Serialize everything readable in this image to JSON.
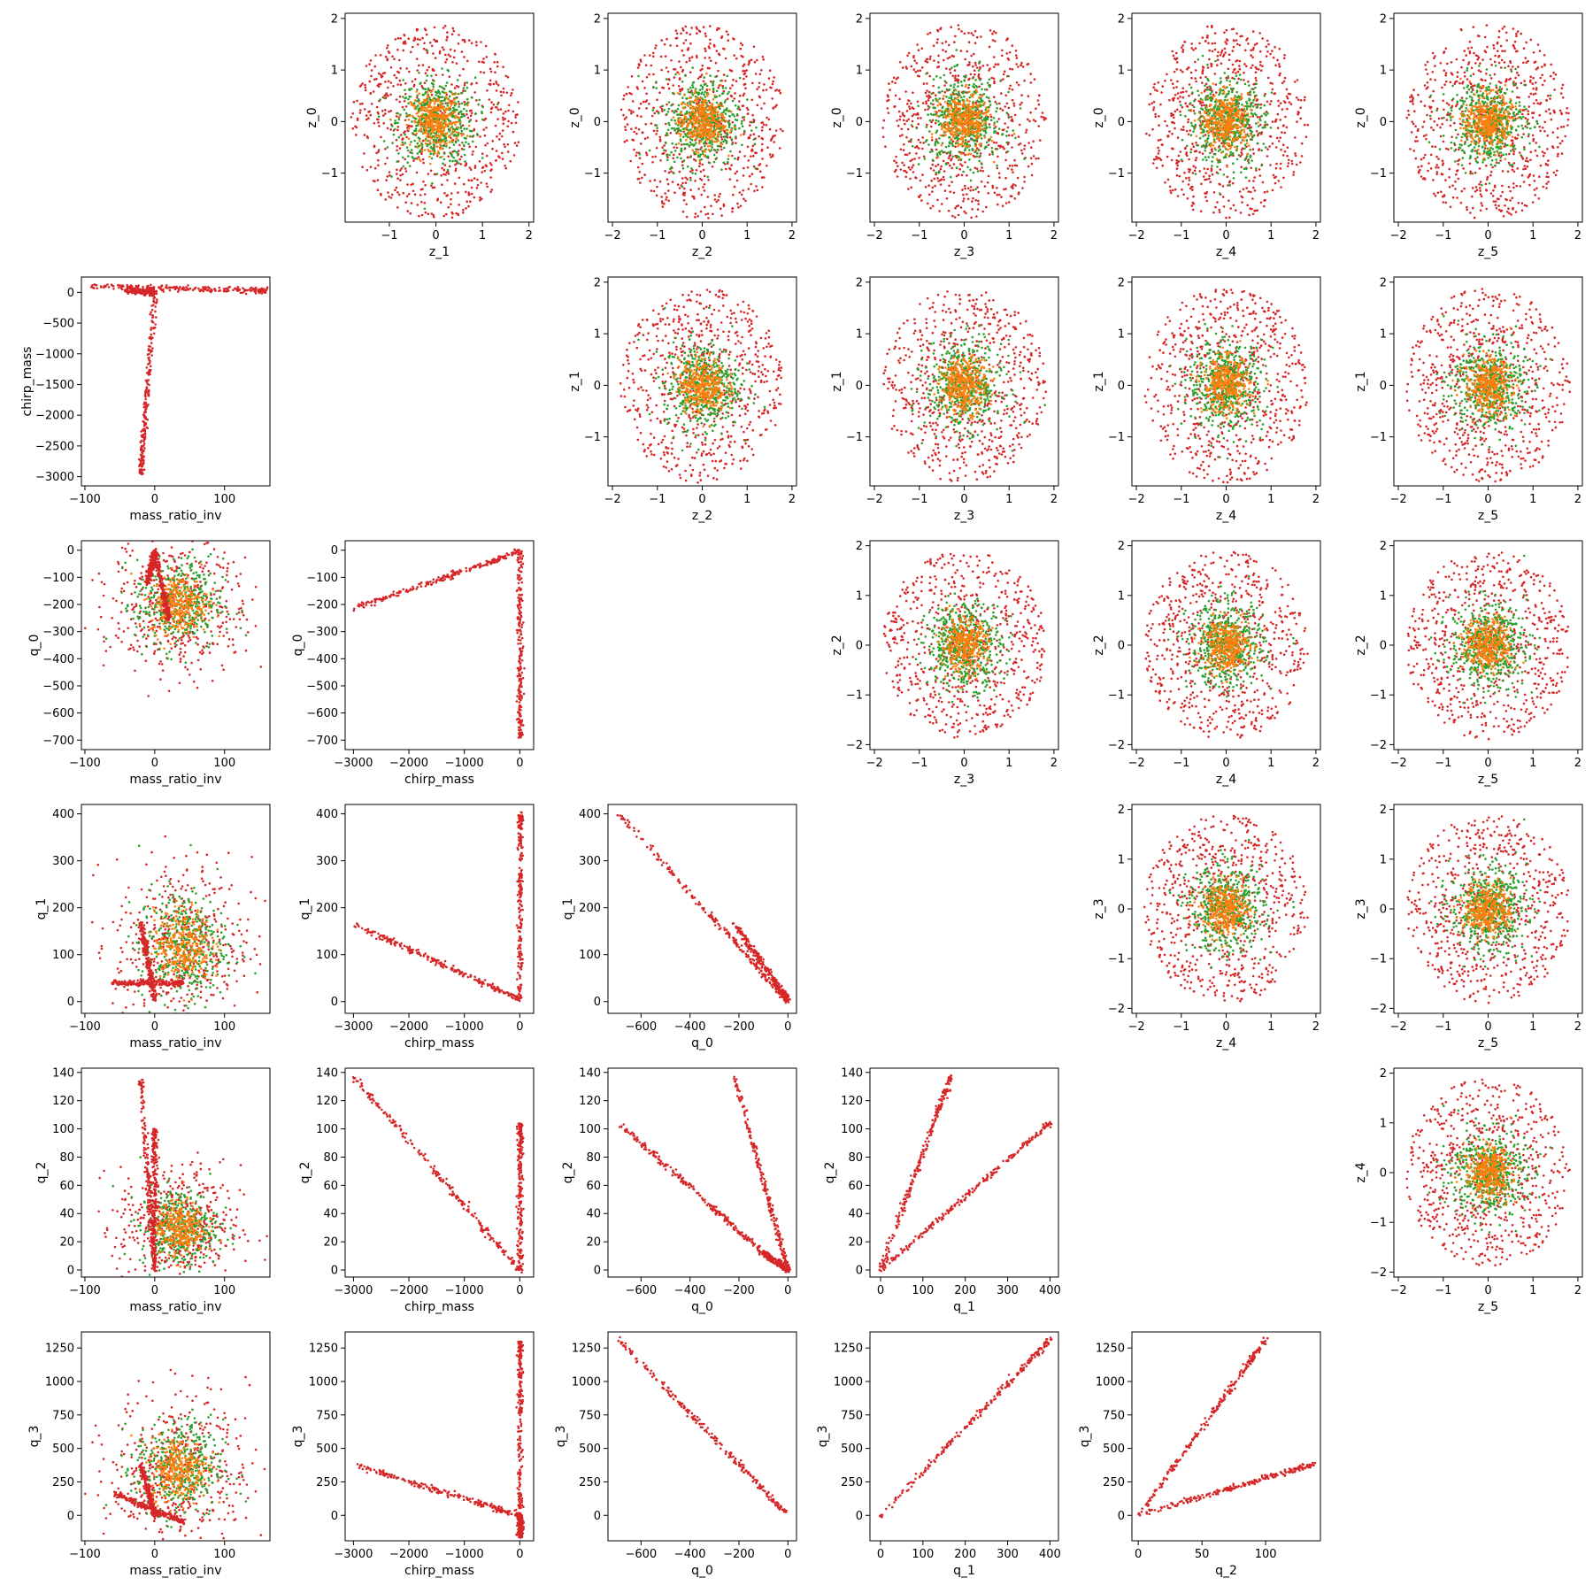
{
  "chart_data": {
    "type": "scatter",
    "layout": "pairwise-grid-6x6",
    "series_colors": [
      "#d62728",
      "#2ca02c",
      "#ff7f0e"
    ],
    "variables": {
      "z_0": {
        "ticks": [
          -1,
          0,
          1,
          2
        ],
        "range": [
          -1.95,
          2.1
        ]
      },
      "z_1": {
        "ticks": [
          -1,
          0,
          1,
          2
        ],
        "range": [
          -1.95,
          2.1
        ]
      },
      "z_2": {
        "ticks": [
          -2,
          -1,
          0,
          1,
          2
        ],
        "range": [
          -2.1,
          2.1
        ]
      },
      "z_3": {
        "ticks": [
          -2,
          -1,
          0,
          1,
          2
        ],
        "range": [
          -2.1,
          2.1
        ]
      },
      "z_4": {
        "ticks": [
          -2,
          -1,
          0,
          1,
          2
        ],
        "range": [
          -2.1,
          2.1
        ]
      },
      "z_5": {
        "ticks": [
          -2,
          -1,
          0,
          1,
          2
        ],
        "range": [
          -2.1,
          2.1
        ]
      },
      "mass_ratio_inv": {
        "ticks": [
          -100,
          0,
          100
        ],
        "range": [
          -105,
          165
        ]
      },
      "chirp_mass": {
        "ticks": [
          -3000,
          -2500,
          -2000,
          -1500,
          -1000,
          -500,
          0
        ],
        "range": [
          -3150,
          250
        ],
        "xticks": [
          -3000,
          -2000,
          -1000,
          0
        ]
      },
      "q_0": {
        "ticks": [
          -700,
          -600,
          -500,
          -400,
          -300,
          -200,
          -100,
          0
        ],
        "range": [
          -735,
          35
        ],
        "xticks": [
          -600,
          -400,
          -200,
          0
        ]
      },
      "q_1": {
        "ticks": [
          0,
          100,
          200,
          300,
          400
        ],
        "range": [
          -25,
          420
        ]
      },
      "q_2": {
        "ticks": [
          0,
          20,
          40,
          60,
          80,
          100,
          120,
          140
        ],
        "range": [
          -5,
          143
        ],
        "xticks": [
          0,
          50,
          100
        ]
      },
      "q_3": {
        "ticks": [
          0,
          250,
          500,
          750,
          1000,
          1250
        ],
        "range": [
          -190,
          1370
        ]
      }
    },
    "tick_labels": {
      "-3000": "−3000",
      "-2500": "−2500",
      "-2000": "−2000",
      "-1500": "−1500",
      "-1000": "−1000",
      "-700": "−700",
      "-600": "−600",
      "-500": "−500",
      "-400": "−400",
      "-300": "−300",
      "-200": "−200",
      "-100": "−100",
      "-2": "−2",
      "-1": "−1",
      "0": "0",
      "1": "1",
      "2": "2",
      "20": "20",
      "40": "40",
      "50": "50",
      "60": "60",
      "80": "80",
      "100": "100",
      "120": "120",
      "140": "140",
      "200": "200",
      "250": "250",
      "300": "300",
      "400": "400",
      "500": "500",
      "750": "750",
      "1000": "1000",
      "1250": "1250"
    },
    "panels": [
      {
        "row": 0,
        "col": 1,
        "x": "z_1",
        "y": "z_0",
        "kind": "gauss"
      },
      {
        "row": 0,
        "col": 2,
        "x": "z_2",
        "y": "z_0",
        "kind": "gauss"
      },
      {
        "row": 0,
        "col": 3,
        "x": "z_3",
        "y": "z_0",
        "kind": "gauss"
      },
      {
        "row": 0,
        "col": 4,
        "x": "z_4",
        "y": "z_0",
        "kind": "gauss"
      },
      {
        "row": 0,
        "col": 5,
        "x": "z_5",
        "y": "z_0",
        "kind": "gauss"
      },
      {
        "row": 1,
        "col": 0,
        "x": "mass_ratio_inv",
        "y": "chirp_mass",
        "kind": "segments",
        "segments": [
          [
            [
              -90,
              100
            ],
            [
              160,
              25
            ]
          ],
          [
            [
              -40,
              40
            ],
            [
              0,
              -10
            ]
          ],
          [
            [
              0,
              -20
            ],
            [
              -20,
              -2950
            ]
          ]
        ]
      },
      {
        "row": 1,
        "col": 2,
        "x": "z_2",
        "y": "z_1",
        "kind": "gauss"
      },
      {
        "row": 1,
        "col": 3,
        "x": "z_3",
        "y": "z_1",
        "kind": "gauss"
      },
      {
        "row": 1,
        "col": 4,
        "x": "z_4",
        "y": "z_1",
        "kind": "gauss"
      },
      {
        "row": 1,
        "col": 5,
        "x": "z_5",
        "y": "z_1",
        "kind": "gauss"
      },
      {
        "row": 2,
        "col": 0,
        "x": "mass_ratio_inv",
        "y": "q_0",
        "kind": "cloud",
        "center": [
          35,
          -200
        ],
        "spread": [
          45,
          120
        ],
        "segments": [
          [
            [
              -10,
              -120
            ],
            [
              0,
              -5
            ]
          ],
          [
            [
              0,
              -5
            ],
            [
              20,
              -250
            ]
          ]
        ]
      },
      {
        "row": 2,
        "col": 1,
        "x": "chirp_mass",
        "y": "q_0",
        "kind": "segments",
        "segments": [
          [
            [
              -3000,
              -215
            ],
            [
              0,
              -5
            ]
          ],
          [
            [
              0,
              -5
            ],
            [
              10,
              -690
            ]
          ]
        ]
      },
      {
        "row": 2,
        "col": 3,
        "x": "z_3",
        "y": "z_2",
        "kind": "gauss"
      },
      {
        "row": 2,
        "col": 4,
        "x": "z_4",
        "y": "z_2",
        "kind": "gauss"
      },
      {
        "row": 2,
        "col": 5,
        "x": "z_5",
        "y": "z_2",
        "kind": "gauss"
      },
      {
        "row": 3,
        "col": 0,
        "x": "mass_ratio_inv",
        "y": "q_1",
        "kind": "cloud",
        "center": [
          40,
          120
        ],
        "spread": [
          45,
          85
        ],
        "segments": [
          [
            [
              -20,
              170
            ],
            [
              0,
              5
            ]
          ],
          [
            [
              -60,
              40
            ],
            [
              40,
              40
            ]
          ]
        ]
      },
      {
        "row": 3,
        "col": 1,
        "x": "chirp_mass",
        "y": "q_1",
        "kind": "segments",
        "segments": [
          [
            [
              -3000,
              165
            ],
            [
              0,
              5
            ]
          ],
          [
            [
              0,
              5
            ],
            [
              10,
              400
            ]
          ]
        ]
      },
      {
        "row": 3,
        "col": 2,
        "x": "q_0",
        "y": "q_1",
        "kind": "segments",
        "segments": [
          [
            [
              -690,
              400
            ],
            [
              0,
              0
            ]
          ],
          [
            [
              -220,
              165
            ],
            [
              0,
              5
            ]
          ]
        ]
      },
      {
        "row": 3,
        "col": 4,
        "x": "z_4",
        "y": "z_3",
        "kind": "gauss"
      },
      {
        "row": 3,
        "col": 5,
        "x": "z_5",
        "y": "z_3",
        "kind": "gauss"
      },
      {
        "row": 4,
        "col": 0,
        "x": "mass_ratio_inv",
        "y": "q_2",
        "kind": "cloud",
        "center": [
          35,
          30
        ],
        "spread": [
          40,
          20
        ],
        "segments": [
          [
            [
              -20,
              137
            ],
            [
              0,
              0
            ]
          ],
          [
            [
              0,
              0
            ],
            [
              0,
              100
            ]
          ]
        ]
      },
      {
        "row": 4,
        "col": 1,
        "x": "chirp_mass",
        "y": "q_2",
        "kind": "segments",
        "segments": [
          [
            [
              -3000,
              137
            ],
            [
              0,
              0
            ]
          ],
          [
            [
              0,
              0
            ],
            [
              10,
              103
            ]
          ]
        ]
      },
      {
        "row": 4,
        "col": 2,
        "x": "q_0",
        "y": "q_2",
        "kind": "segments",
        "segments": [
          [
            [
              -690,
              104
            ],
            [
              -100,
              12
            ]
          ],
          [
            [
              -100,
              12
            ],
            [
              0,
              0
            ]
          ],
          [
            [
              -220,
              137
            ],
            [
              0,
              0
            ]
          ]
        ]
      },
      {
        "row": 4,
        "col": 3,
        "x": "q_1",
        "y": "q_2",
        "kind": "segments",
        "segments": [
          [
            [
              0,
              0
            ],
            [
              400,
              104
            ]
          ],
          [
            [
              0,
              0
            ],
            [
              165,
              137
            ]
          ]
        ]
      },
      {
        "row": 4,
        "col": 5,
        "x": "z_5",
        "y": "z_4",
        "kind": "gauss"
      },
      {
        "row": 5,
        "col": 0,
        "x": "mass_ratio_inv",
        "y": "q_3",
        "kind": "cloud",
        "center": [
          35,
          350
        ],
        "spread": [
          45,
          260
        ],
        "segments": [
          [
            [
              -20,
              380
            ],
            [
              0,
              0
            ]
          ],
          [
            [
              -60,
              170
            ],
            [
              40,
              -50
            ]
          ]
        ]
      },
      {
        "row": 5,
        "col": 1,
        "x": "chirp_mass",
        "y": "q_3",
        "kind": "segments",
        "segments": [
          [
            [
              -3000,
              380
            ],
            [
              0,
              0
            ]
          ],
          [
            [
              0,
              0
            ],
            [
              10,
              1300
            ]
          ],
          [
            [
              0,
              0
            ],
            [
              10,
              -150
            ]
          ]
        ]
      },
      {
        "row": 5,
        "col": 2,
        "x": "q_0",
        "y": "q_3",
        "kind": "segments",
        "segments": [
          [
            [
              -690,
              1310
            ],
            [
              0,
              0
            ]
          ]
        ]
      },
      {
        "row": 5,
        "col": 3,
        "x": "q_1",
        "y": "q_3",
        "kind": "segments",
        "segments": [
          [
            [
              0,
              0
            ],
            [
              400,
              1310
            ]
          ]
        ]
      },
      {
        "row": 5,
        "col": 4,
        "x": "q_2",
        "y": "q_3",
        "kind": "segments",
        "segments": [
          [
            [
              0,
              0
            ],
            [
              100,
              1310
            ]
          ],
          [
            [
              0,
              0
            ],
            [
              137,
              380
            ]
          ]
        ]
      }
    ]
  }
}
